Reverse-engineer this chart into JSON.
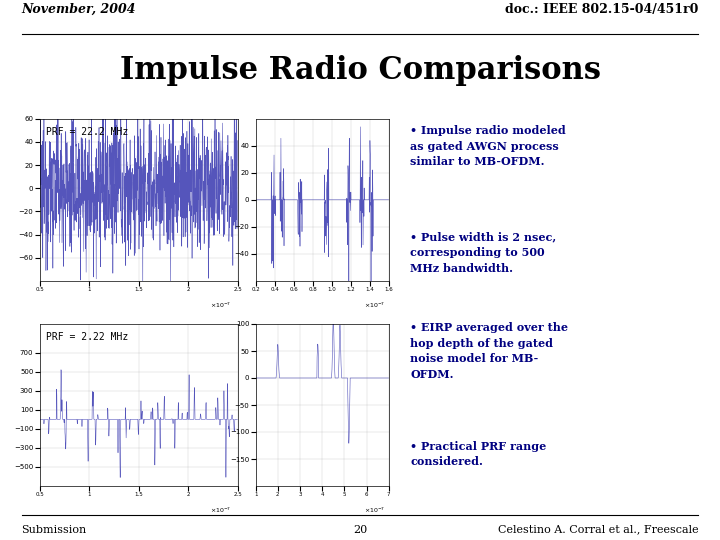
{
  "title": "Impulse Radio Comparisons",
  "header_left": "November, 2004",
  "header_right": "doc.: IEEE 802.15-04/451r0",
  "footer_left": "Submission",
  "footer_center": "20",
  "footer_right": "Celestino A. Corral et al., Freescale",
  "prf_label_top": "PRF = 22.2 MHz",
  "prf_label_bottom": "PRF = 2.22 MHz",
  "bullet1": "• Impulse radio modeled\nas gated AWGN process\nsimilar to MB-OFDM.",
  "bullet2": "• Pulse width is 2 nsec,\ncorresponding to 500\nMHz bandwidth.",
  "bullet3": "• EIRP averaged over the\nhop depth of the gated\nnoise model for MB-\nOFDM.",
  "bullet4": "• Practical PRF range\nconsidered.",
  "bg_color": "#ffffff",
  "text_color_dark": "#000080",
  "text_color_header": "#000000",
  "plot_line_color": "#5555bb",
  "title_fontsize": 22,
  "header_fontsize": 9,
  "footer_fontsize": 8,
  "bullet_fontsize": 8,
  "prf_label_fontsize": 7
}
